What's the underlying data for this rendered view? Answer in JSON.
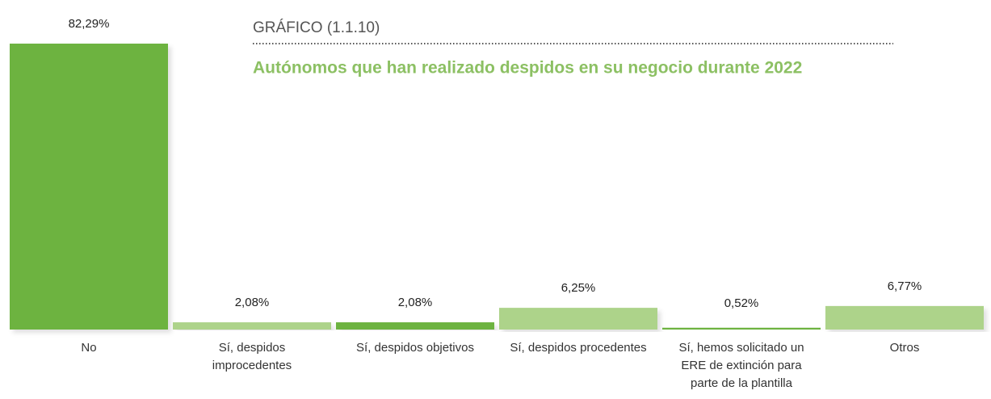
{
  "chart_data": {
    "type": "bar",
    "title": "GRÁFICO (1.1.10)",
    "subtitle": "Autónomos que han realizado despidos en su negocio durante 2022",
    "categories": [
      "No",
      "Sí, despidos improcedentes",
      "Sí, despidos objetivos",
      "Sí, despidos procedentes",
      "Sí, hemos solicitado un ERE de extinción para parte de la plantilla",
      "Otros"
    ],
    "values": [
      82.29,
      2.08,
      2.08,
      6.25,
      0.52,
      6.77
    ],
    "value_labels": [
      "82,29%",
      "2,08%",
      "2,08%",
      "6,25%",
      "0,52%",
      "6,77%"
    ],
    "colors": [
      "#6db33f",
      "#add38a",
      "#6db33f",
      "#add38a",
      "#6db33f",
      "#add38a"
    ]
  }
}
